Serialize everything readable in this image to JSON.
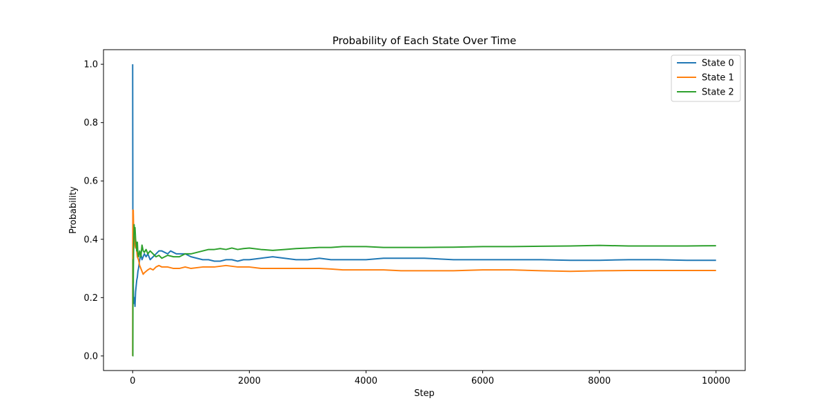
{
  "chart_data": {
    "type": "line",
    "title": "Probability of Each State Over Time",
    "xlabel": "Step",
    "ylabel": "Probability",
    "xlim": [
      -500,
      10500
    ],
    "ylim": [
      -0.05,
      1.05
    ],
    "xticks": [
      0,
      2000,
      4000,
      6000,
      8000,
      10000
    ],
    "xtick_labels": [
      "0",
      "2000",
      "4000",
      "6000",
      "8000",
      "10000"
    ],
    "yticks": [
      0.0,
      0.2,
      0.4,
      0.6,
      0.8,
      1.0
    ],
    "ytick_labels": [
      "0.0",
      "0.2",
      "0.4",
      "0.6",
      "0.8",
      "1.0"
    ],
    "grid": false,
    "legend_position": "top-right",
    "series": [
      {
        "name": "State 0",
        "color": "#1f77b4",
        "x": [
          0,
          3,
          6,
          10,
          15,
          20,
          25,
          30,
          40,
          50,
          60,
          70,
          80,
          90,
          100,
          120,
          140,
          160,
          180,
          200,
          230,
          260,
          300,
          350,
          400,
          450,
          500,
          550,
          600,
          650,
          700,
          750,
          800,
          900,
          1000,
          1100,
          1200,
          1300,
          1400,
          1500,
          1600,
          1700,
          1800,
          1900,
          2000,
          2200,
          2400,
          2600,
          2800,
          3000,
          3200,
          3400,
          3600,
          3800,
          4000,
          4300,
          4600,
          5000,
          5500,
          6000,
          6500,
          7000,
          7500,
          8000,
          8500,
          9000,
          9500,
          10000
        ],
        "values": [
          1.0,
          0.5,
          0.33,
          0.25,
          0.2,
          0.18,
          0.19,
          0.2,
          0.17,
          0.22,
          0.24,
          0.26,
          0.27,
          0.29,
          0.3,
          0.33,
          0.35,
          0.33,
          0.34,
          0.35,
          0.34,
          0.35,
          0.33,
          0.34,
          0.35,
          0.36,
          0.36,
          0.355,
          0.35,
          0.36,
          0.355,
          0.35,
          0.35,
          0.35,
          0.34,
          0.335,
          0.33,
          0.33,
          0.325,
          0.325,
          0.33,
          0.33,
          0.325,
          0.33,
          0.33,
          0.335,
          0.34,
          0.335,
          0.33,
          0.33,
          0.335,
          0.33,
          0.33,
          0.33,
          0.33,
          0.335,
          0.335,
          0.335,
          0.33,
          0.33,
          0.33,
          0.33,
          0.328,
          0.328,
          0.33,
          0.33,
          0.328,
          0.328
        ]
      },
      {
        "name": "State 1",
        "color": "#ff7f0e",
        "x": [
          0,
          3,
          6,
          10,
          15,
          20,
          30,
          40,
          50,
          60,
          70,
          80,
          100,
          120,
          140,
          160,
          180,
          200,
          230,
          260,
          300,
          350,
          400,
          450,
          500,
          600,
          700,
          800,
          900,
          1000,
          1200,
          1400,
          1600,
          1800,
          2000,
          2200,
          2400,
          2600,
          2800,
          3000,
          3200,
          3400,
          3600,
          3800,
          4000,
          4300,
          4600,
          5000,
          5500,
          6000,
          6500,
          7000,
          7500,
          8000,
          8500,
          9000,
          9500,
          10000
        ],
        "values": [
          0.0,
          0.5,
          0.33,
          0.5,
          0.45,
          0.42,
          0.4,
          0.38,
          0.37,
          0.39,
          0.36,
          0.34,
          0.33,
          0.31,
          0.3,
          0.29,
          0.28,
          0.285,
          0.29,
          0.295,
          0.3,
          0.295,
          0.305,
          0.31,
          0.305,
          0.305,
          0.3,
          0.3,
          0.305,
          0.3,
          0.305,
          0.305,
          0.31,
          0.305,
          0.305,
          0.3,
          0.3,
          0.3,
          0.3,
          0.3,
          0.3,
          0.298,
          0.295,
          0.295,
          0.295,
          0.295,
          0.292,
          0.292,
          0.292,
          0.295,
          0.295,
          0.292,
          0.29,
          0.292,
          0.293,
          0.293,
          0.293,
          0.293
        ]
      },
      {
        "name": "State 2",
        "color": "#2ca02c",
        "x": [
          0,
          3,
          6,
          10,
          15,
          20,
          25,
          30,
          40,
          50,
          60,
          70,
          80,
          90,
          100,
          120,
          140,
          160,
          180,
          200,
          230,
          260,
          300,
          350,
          400,
          450,
          500,
          550,
          600,
          700,
          800,
          900,
          1000,
          1100,
          1200,
          1300,
          1400,
          1500,
          1600,
          1700,
          1800,
          1900,
          2000,
          2200,
          2400,
          2600,
          2800,
          3000,
          3200,
          3400,
          3600,
          3800,
          4000,
          4300,
          4600,
          5000,
          5500,
          6000,
          6500,
          7000,
          7500,
          8000,
          8500,
          9000,
          9500,
          10000
        ],
        "values": [
          0.0,
          0.0,
          0.33,
          0.25,
          0.35,
          0.4,
          0.45,
          0.42,
          0.44,
          0.4,
          0.38,
          0.36,
          0.39,
          0.35,
          0.34,
          0.36,
          0.34,
          0.38,
          0.36,
          0.355,
          0.365,
          0.35,
          0.36,
          0.35,
          0.34,
          0.345,
          0.335,
          0.34,
          0.345,
          0.34,
          0.34,
          0.35,
          0.35,
          0.355,
          0.36,
          0.365,
          0.365,
          0.368,
          0.365,
          0.37,
          0.365,
          0.368,
          0.37,
          0.365,
          0.362,
          0.365,
          0.368,
          0.37,
          0.372,
          0.372,
          0.375,
          0.375,
          0.375,
          0.372,
          0.372,
          0.372,
          0.373,
          0.375,
          0.375,
          0.376,
          0.377,
          0.379,
          0.377,
          0.377,
          0.377,
          0.378
        ]
      }
    ]
  }
}
